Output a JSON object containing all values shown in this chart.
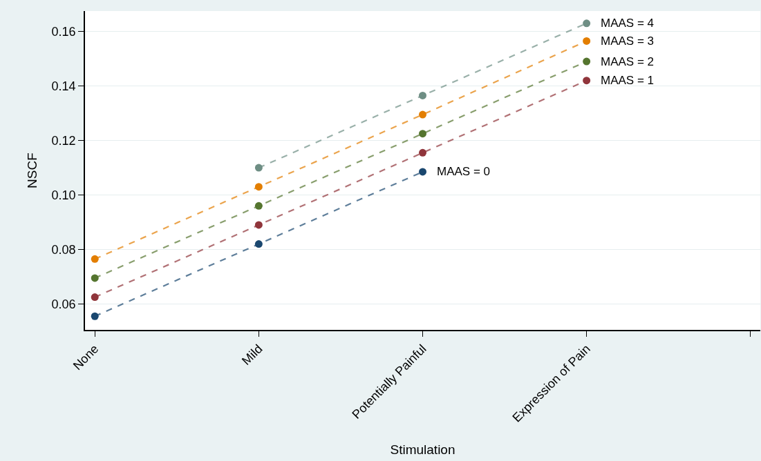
{
  "chart_data": {
    "type": "line",
    "xlabel": "Stimulation",
    "ylabel": "NSCF",
    "categories": [
      "None",
      "Mild",
      "Potentially Painful",
      "Expression of Pain",
      null
    ],
    "ylim": [
      0.0505,
      0.1675
    ],
    "yticks": [
      {
        "value": 0.06,
        "label": "0.06"
      },
      {
        "value": 0.08,
        "label": "0.08"
      },
      {
        "value": 0.1,
        "label": "0.10"
      },
      {
        "value": 0.12,
        "label": "0.12"
      },
      {
        "value": 0.14,
        "label": "0.14"
      },
      {
        "value": 0.16,
        "label": "0.16"
      }
    ],
    "grid": "y",
    "legend": false,
    "marker": "circle",
    "line_style": "dashed",
    "series": [
      {
        "name": "MAAS = 0",
        "color": "#1a476f",
        "values": [
          0.0555,
          0.082,
          0.1085,
          null,
          null
        ]
      },
      {
        "name": "MAAS = 1",
        "color": "#90353b",
        "values": [
          0.0625,
          0.089,
          0.1155,
          0.142,
          null
        ]
      },
      {
        "name": "MAAS = 2",
        "color": "#55752f",
        "values": [
          0.0695,
          0.096,
          0.1225,
          0.149,
          null
        ]
      },
      {
        "name": "MAAS = 3",
        "color": "#e37e00",
        "values": [
          0.0765,
          0.103,
          0.1295,
          0.1565,
          null
        ]
      },
      {
        "name": "MAAS = 4",
        "color": "#6e8e84",
        "values": [
          null,
          0.11,
          0.1365,
          0.163,
          null
        ]
      }
    ]
  }
}
